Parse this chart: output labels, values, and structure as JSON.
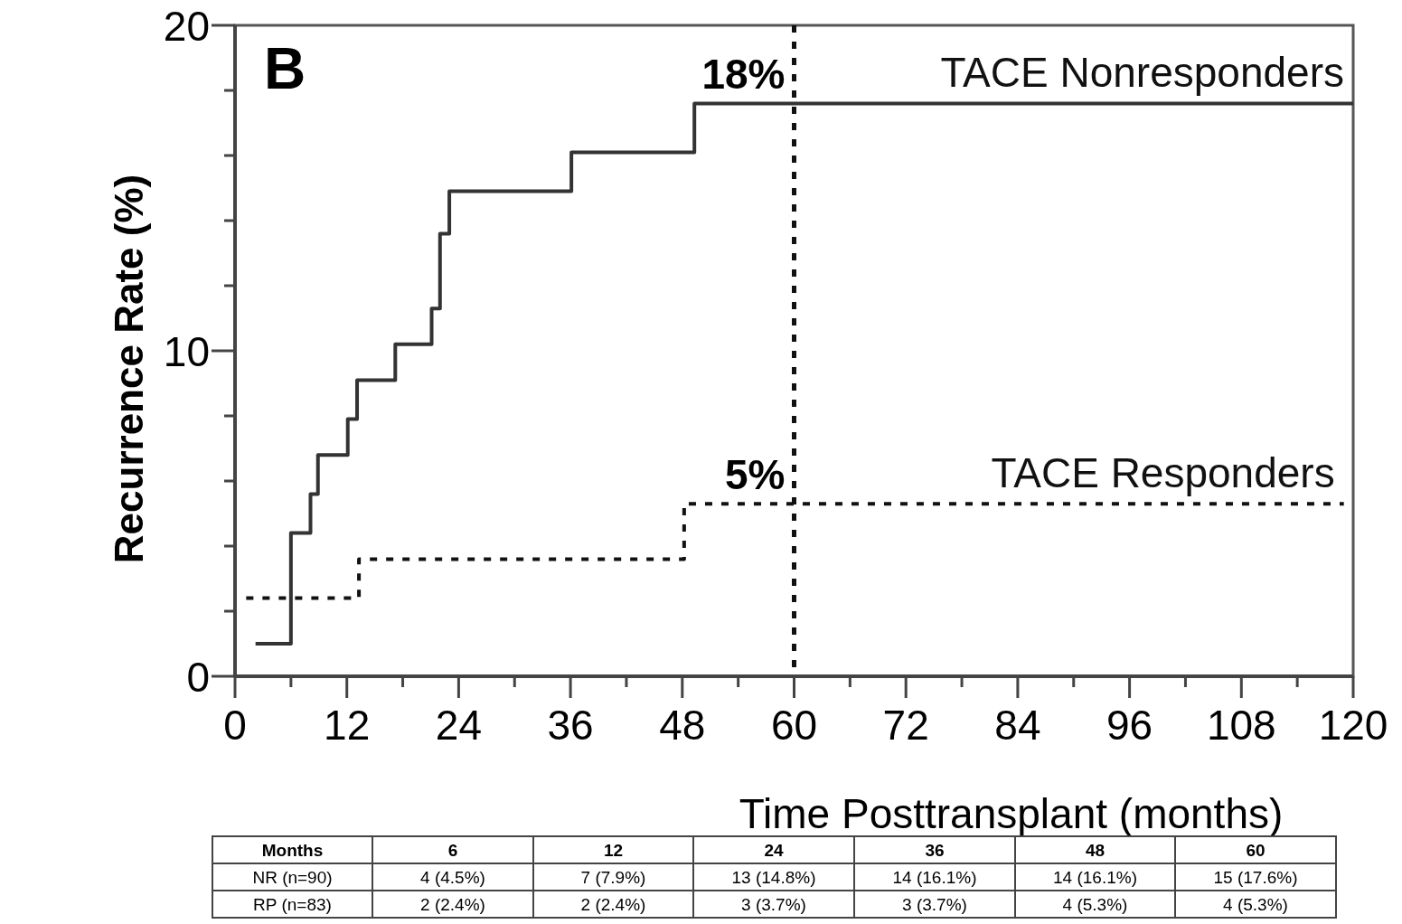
{
  "chart_data": {
    "type": "step",
    "xlabel": "Time Posttransplant (months)",
    "ylabel": "Recurrence Rate (%)",
    "xlim": [
      0,
      120
    ],
    "ylim": [
      0,
      20
    ],
    "xticks": [
      0,
      {
        "value": 6,
        "label": null
      },
      12,
      {
        "value": 18,
        "label": null
      },
      24,
      {
        "value": 30,
        "label": null
      },
      36,
      {
        "value": 42,
        "label": null
      },
      48,
      {
        "value": 54,
        "label": null
      },
      60,
      {
        "value": 66,
        "label": null
      },
      72,
      {
        "value": 78,
        "label": null
      },
      84,
      {
        "value": 90,
        "label": null
      },
      96,
      {
        "value": 102,
        "label": null
      },
      108,
      {
        "value": 114,
        "label": null
      },
      120
    ],
    "yticks": [
      0,
      {
        "value": 2,
        "label": null
      },
      {
        "value": 4,
        "label": null
      },
      {
        "value": 6,
        "label": null
      },
      {
        "value": 8,
        "label": null
      },
      10,
      {
        "value": 12,
        "label": null
      },
      {
        "value": 14,
        "label": null
      },
      {
        "value": 16,
        "label": null
      },
      {
        "value": 18,
        "label": null
      },
      20
    ],
    "series": [
      {
        "name": "TACE Nonresponders",
        "color": "#333333",
        "line_style": "solid",
        "x": [
          2.2,
          6,
          8.1,
          8.9,
          12.1,
          13.1,
          17.2,
          21.1,
          22,
          23,
          36.1,
          49.3,
          120
        ],
        "values": [
          1.0,
          4.4,
          5.6,
          6.8,
          7.9,
          9.1,
          10.2,
          11.3,
          13.6,
          14.9,
          16.1,
          17.6,
          17.6
        ]
      },
      {
        "name": "TACE Responders",
        "color": "#111111",
        "line_style": "dotted",
        "x": [
          1.2,
          13.3,
          48.2,
          119
        ],
        "values": [
          2.4,
          3.6,
          5.3,
          5.3
        ]
      }
    ],
    "ref_lines": [
      {
        "axis": "x",
        "value": 60,
        "color": "#111111",
        "line_style": "dotted"
      }
    ],
    "annotations": [
      "B",
      {
        "text": "18%",
        "x": 60,
        "y": 17.6
      },
      {
        "text": "5%",
        "x": 60,
        "y": 5.3
      },
      "Months",
      "6",
      "12",
      "24",
      "36",
      "48",
      "60",
      "NR (n=90)",
      "4 (4.5%)",
      "7 (7.9%)",
      "13 (14.8%)",
      "14 (16.1%)",
      "14 (16.1%)",
      "15 (17.6%)",
      "RP (n=83)",
      "2 (2.4%)",
      "2 (2.4%)",
      "3 (3.7%)",
      "3 (3.7%)",
      "4 (5.3%)",
      "4 (5.3%)"
    ]
  }
}
